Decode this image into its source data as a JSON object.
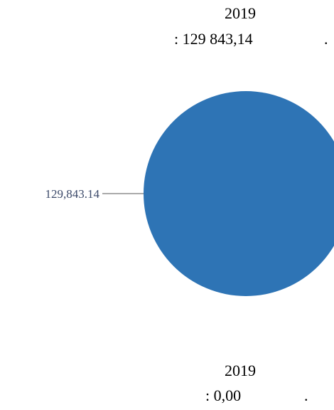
{
  "chart_data": {
    "type": "pie",
    "title_top": {
      "line1": "2019",
      "line2": ": 129 843,14",
      "line2_suffix": "."
    },
    "title_bottom": {
      "line1": "2019",
      "line2": ": 0,00",
      "line2_suffix": "."
    },
    "slices": [
      {
        "value": 129843.14,
        "label": "129,843.14",
        "color": "#2e74b5"
      }
    ],
    "legend": "none"
  }
}
